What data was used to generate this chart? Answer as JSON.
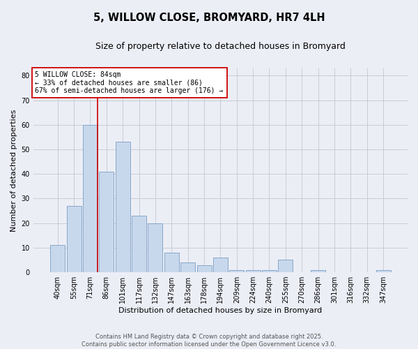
{
  "title": "5, WILLOW CLOSE, BROMYARD, HR7 4LH",
  "subtitle": "Size of property relative to detached houses in Bromyard",
  "xlabel": "Distribution of detached houses by size in Bromyard",
  "ylabel": "Number of detached properties",
  "categories": [
    "40sqm",
    "55sqm",
    "71sqm",
    "86sqm",
    "101sqm",
    "117sqm",
    "132sqm",
    "147sqm",
    "163sqm",
    "178sqm",
    "194sqm",
    "209sqm",
    "224sqm",
    "240sqm",
    "255sqm",
    "270sqm",
    "286sqm",
    "301sqm",
    "316sqm",
    "332sqm",
    "347sqm"
  ],
  "values": [
    11,
    27,
    60,
    41,
    53,
    23,
    20,
    8,
    4,
    3,
    6,
    1,
    1,
    1,
    5,
    0,
    1,
    0,
    0,
    0,
    1
  ],
  "bar_color": "#c8d8ec",
  "bar_edge_color": "#7a9fc4",
  "grid_color": "#c8ccd8",
  "background_color": "#eceef6",
  "ylim": [
    0,
    83
  ],
  "yticks": [
    0,
    10,
    20,
    30,
    40,
    50,
    60,
    70,
    80
  ],
  "property_line_label": "5 WILLOW CLOSE: 84sqm",
  "annotation_line1": "← 33% of detached houses are smaller (86)",
  "annotation_line2": "67% of semi-detached houses are larger (176) →",
  "annotation_box_color": "#ffffff",
  "annotation_border_color": "#cc0000",
  "vline_color": "#cc0000",
  "footer_line1": "Contains HM Land Registry data © Crown copyright and database right 2025.",
  "footer_line2": "Contains public sector information licensed under the Open Government Licence v3.0.",
  "title_fontsize": 10.5,
  "subtitle_fontsize": 9,
  "axis_label_fontsize": 8,
  "tick_fontsize": 7,
  "annotation_fontsize": 7,
  "footer_fontsize": 6
}
